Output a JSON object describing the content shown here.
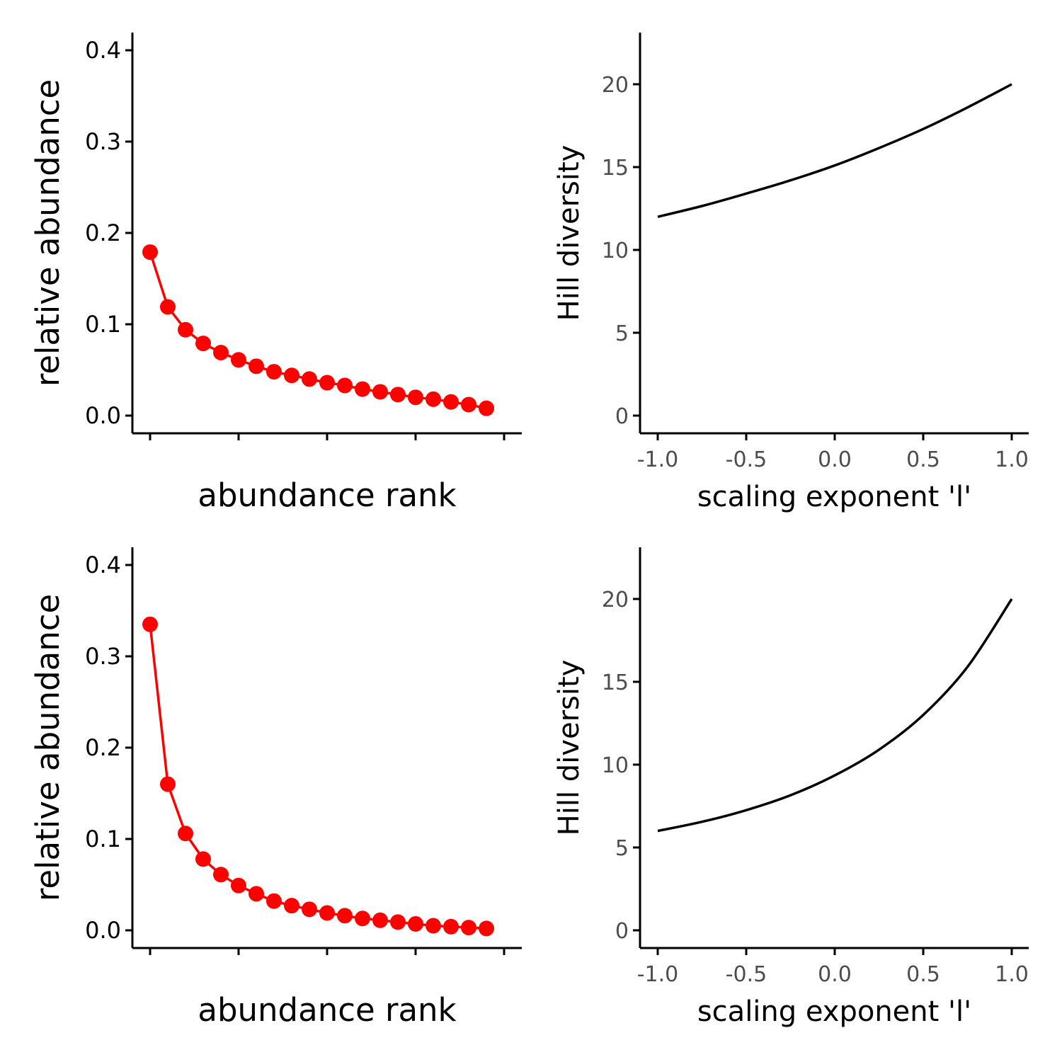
{
  "chart_data": [
    {
      "type": "line",
      "panel": "top-left",
      "xlabel": "abundance rank",
      "ylabel": "relative abundance",
      "ylim": [
        0,
        0.4
      ],
      "yticks": [
        "0.0",
        "0.1",
        "0.2",
        "0.3",
        "0.4"
      ],
      "ytick_values": [
        0,
        0.1,
        0.2,
        0.3,
        0.4
      ],
      "xlim": [
        0,
        21
      ],
      "xtick_values": [
        1,
        6,
        11,
        16,
        21
      ],
      "xticks_labeled": false,
      "grid": false,
      "point_color": "#ff0000",
      "x": [
        1,
        2,
        3,
        4,
        5,
        6,
        7,
        8,
        9,
        10,
        11,
        12,
        13,
        14,
        15,
        16,
        17,
        18,
        19,
        20
      ],
      "values": [
        0.179,
        0.119,
        0.094,
        0.079,
        0.069,
        0.061,
        0.054,
        0.048,
        0.044,
        0.04,
        0.036,
        0.033,
        0.029,
        0.026,
        0.023,
        0.02,
        0.018,
        0.015,
        0.012,
        0.008
      ]
    },
    {
      "type": "line",
      "panel": "top-right",
      "xlabel": "scaling exponent 'l'",
      "ylabel": "Hill diversity",
      "xlim": [
        -1,
        1
      ],
      "ylim": [
        0,
        20
      ],
      "xticks": [
        "-1.0",
        "-0.5",
        "0.0",
        "0.5",
        "1.0"
      ],
      "xtick_values": [
        -1,
        -0.5,
        0,
        0.5,
        1
      ],
      "yticks": [
        "0",
        "5",
        "10",
        "15",
        "20"
      ],
      "ytick_values": [
        0,
        5,
        10,
        15,
        20
      ],
      "grid": false,
      "line_color": "#000000",
      "x": [
        -1,
        -0.75,
        -0.5,
        -0.25,
        0,
        0.25,
        0.5,
        0.75,
        1
      ],
      "values": [
        12.0,
        12.65,
        13.4,
        14.2,
        15.1,
        16.15,
        17.3,
        18.6,
        20.0
      ]
    },
    {
      "type": "line",
      "panel": "bottom-left",
      "xlabel": "abundance rank",
      "ylabel": "relative abundance",
      "ylim": [
        0,
        0.4
      ],
      "yticks": [
        "0.0",
        "0.1",
        "0.2",
        "0.3",
        "0.4"
      ],
      "ytick_values": [
        0,
        0.1,
        0.2,
        0.3,
        0.4
      ],
      "xlim": [
        0,
        21
      ],
      "xtick_values": [
        1,
        6,
        11,
        16,
        21
      ],
      "xticks_labeled": false,
      "grid": false,
      "point_color": "#ff0000",
      "x": [
        1,
        2,
        3,
        4,
        5,
        6,
        7,
        8,
        9,
        10,
        11,
        12,
        13,
        14,
        15,
        16,
        17,
        18,
        19,
        20
      ],
      "values": [
        0.335,
        0.16,
        0.106,
        0.078,
        0.061,
        0.049,
        0.04,
        0.032,
        0.027,
        0.023,
        0.019,
        0.016,
        0.013,
        0.011,
        0.009,
        0.007,
        0.005,
        0.004,
        0.003,
        0.002
      ]
    },
    {
      "type": "line",
      "panel": "bottom-right",
      "xlabel": "scaling exponent 'l'",
      "ylabel": "Hill diversity",
      "xlim": [
        -1,
        1
      ],
      "ylim": [
        0,
        20
      ],
      "xticks": [
        "-1.0",
        "-0.5",
        "0.0",
        "0.5",
        "1.0"
      ],
      "xtick_values": [
        -1,
        -0.5,
        0,
        0.5,
        1
      ],
      "yticks": [
        "0",
        "5",
        "10",
        "15",
        "20"
      ],
      "ytick_values": [
        0,
        5,
        10,
        15,
        20
      ],
      "grid": false,
      "line_color": "#000000",
      "x": [
        -1,
        -0.75,
        -0.5,
        -0.25,
        0,
        0.25,
        0.5,
        0.75,
        1
      ],
      "values": [
        6.0,
        6.55,
        7.25,
        8.15,
        9.35,
        10.9,
        13.0,
        15.9,
        20.0
      ]
    }
  ]
}
